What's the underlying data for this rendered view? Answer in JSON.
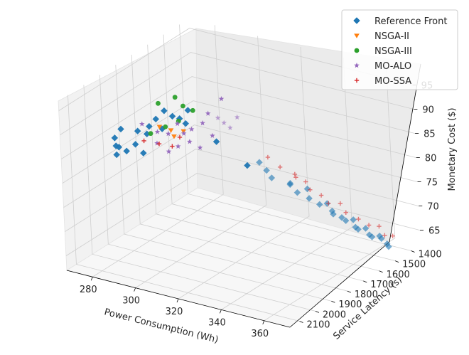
{
  "chart_data": {
    "type": "scatter",
    "projection": "3d",
    "xlabel": "Power Consumption (Wh)",
    "ylabel": "Service Latency (s)",
    "zlabel": "Monetary Cost ($)",
    "x_ticks": [
      280,
      300,
      320,
      340,
      360
    ],
    "y_ticks": [
      1400,
      1500,
      1600,
      1700,
      1800,
      1900,
      2000,
      2100
    ],
    "z_ticks": [
      65,
      70,
      75,
      80,
      85,
      90,
      95
    ],
    "xlim": [
      268,
      372
    ],
    "ylim": [
      1340,
      2160
    ],
    "zlim": [
      62,
      97
    ],
    "grid": true,
    "legend_position": "top-right",
    "series": [
      {
        "name": "Reference Front",
        "marker": "diamond",
        "color": "#1f77b4",
        "points": [
          [
            272,
            1880,
            84
          ],
          [
            273,
            1870,
            82
          ],
          [
            271,
            1860,
            80
          ],
          [
            274,
            1900,
            83
          ],
          [
            272,
            1840,
            85
          ],
          [
            275,
            1850,
            81
          ],
          [
            277,
            1820,
            82
          ],
          [
            276,
            1790,
            84
          ],
          [
            279,
            1800,
            80
          ],
          [
            278,
            1760,
            83
          ],
          [
            280,
            1770,
            85
          ],
          [
            281,
            1740,
            86
          ],
          [
            283,
            1730,
            84
          ],
          [
            282,
            1700,
            87
          ],
          [
            285,
            1690,
            86
          ],
          [
            286,
            1660,
            85
          ],
          [
            288,
            1650,
            84
          ],
          [
            287,
            1620,
            86
          ],
          [
            292,
            1520,
            78
          ],
          [
            299,
            1430,
            72
          ],
          [
            304,
            1420,
            73
          ],
          [
            308,
            1430,
            72
          ],
          [
            311,
            1440,
            71
          ],
          [
            318,
            1420,
            70
          ],
          [
            320,
            1445,
            71
          ],
          [
            322,
            1430,
            69
          ],
          [
            326,
            1420,
            70
          ],
          [
            329,
            1450,
            69
          ],
          [
            333,
            1440,
            68
          ],
          [
            335,
            1420,
            68
          ],
          [
            338,
            1430,
            67
          ],
          [
            340,
            1450,
            67
          ],
          [
            342,
            1425,
            66
          ],
          [
            345,
            1440,
            66
          ],
          [
            347,
            1420,
            66
          ],
          [
            349,
            1435,
            65
          ],
          [
            351,
            1445,
            65
          ],
          [
            353,
            1425,
            65
          ],
          [
            355,
            1430,
            64
          ],
          [
            357,
            1440,
            64
          ],
          [
            359,
            1420,
            64
          ],
          [
            361,
            1435,
            64
          ],
          [
            363,
            1428,
            63
          ],
          [
            365,
            1445,
            63
          ]
        ]
      },
      {
        "name": "NSGA-II",
        "marker": "triangle_down",
        "color": "#ff7f0e",
        "points": [
          [
            281,
            1720,
            84
          ],
          [
            284,
            1690,
            83
          ],
          [
            283,
            1660,
            81
          ],
          [
            286,
            1640,
            82
          ]
        ]
      },
      {
        "name": "NSGA-III",
        "marker": "circle",
        "color": "#2ca02c",
        "points": [
          [
            284,
            1760,
            90
          ],
          [
            289,
            1720,
            91
          ],
          [
            291,
            1700,
            89
          ],
          [
            294,
            1680,
            88
          ],
          [
            279,
            1750,
            83
          ],
          [
            283,
            1710,
            84
          ],
          [
            287,
            1680,
            85
          ]
        ]
      },
      {
        "name": "MO-ALO",
        "marker": "star",
        "color": "#9467bd",
        "points": [
          [
            279,
            1800,
            86
          ],
          [
            283,
            1760,
            84
          ],
          [
            285,
            1720,
            83
          ],
          [
            288,
            1700,
            85
          ],
          [
            290,
            1690,
            83
          ],
          [
            293,
            1680,
            84
          ],
          [
            296,
            1650,
            85
          ],
          [
            298,
            1640,
            87
          ],
          [
            301,
            1620,
            86
          ],
          [
            303,
            1610,
            85
          ],
          [
            305,
            1600,
            84
          ],
          [
            300,
            1580,
            89
          ],
          [
            307,
            1580,
            86
          ],
          [
            281,
            1740,
            81
          ],
          [
            284,
            1710,
            79
          ],
          [
            287,
            1690,
            80
          ],
          [
            291,
            1670,
            81
          ],
          [
            295,
            1660,
            80
          ],
          [
            298,
            1620,
            82
          ]
        ]
      },
      {
        "name": "MO-SSA",
        "marker": "plus",
        "color": "#d62728",
        "points": [
          [
            278,
            1780,
            82
          ],
          [
            282,
            1740,
            81
          ],
          [
            285,
            1700,
            80
          ],
          [
            288,
            1690,
            82
          ],
          [
            312,
            1470,
            76
          ],
          [
            316,
            1450,
            74
          ],
          [
            322,
            1440,
            73
          ],
          [
            324,
            1460,
            73
          ],
          [
            327,
            1440,
            72
          ],
          [
            330,
            1455,
            71
          ],
          [
            334,
            1440,
            70
          ],
          [
            338,
            1450,
            69
          ],
          [
            342,
            1430,
            69
          ],
          [
            346,
            1450,
            68
          ],
          [
            351,
            1440,
            67
          ],
          [
            355,
            1430,
            66
          ],
          [
            359,
            1420,
            66
          ],
          [
            363,
            1440,
            65
          ],
          [
            366,
            1430,
            65
          ]
        ]
      }
    ]
  }
}
